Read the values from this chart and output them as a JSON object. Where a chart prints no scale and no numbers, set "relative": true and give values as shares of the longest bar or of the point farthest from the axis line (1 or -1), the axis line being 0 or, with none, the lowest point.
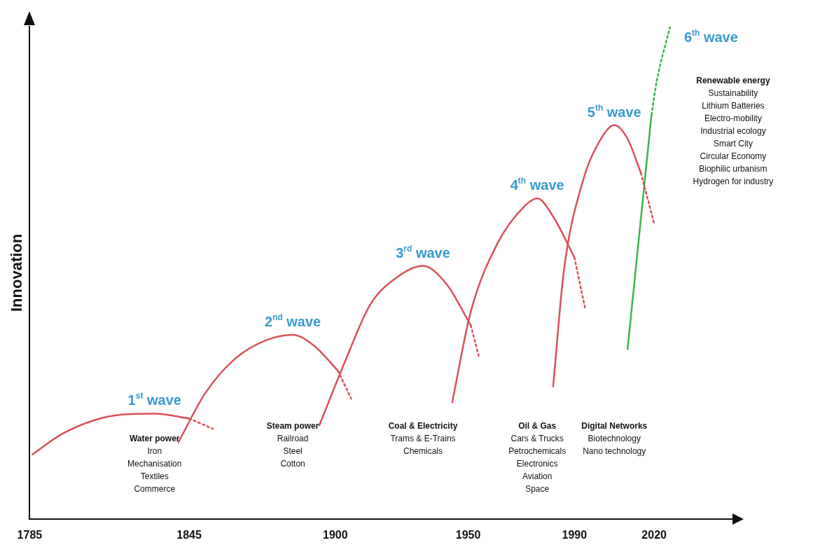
{
  "chart_data": {
    "type": "line",
    "relative": true,
    "ylabel": "Innovation",
    "xlim": [
      1785,
      2050
    ],
    "xticks": [
      1785,
      1845,
      1900,
      1950,
      1990,
      2020
    ],
    "grid": false,
    "legend": false,
    "marker": "none",
    "series": [
      {
        "name": "1$^{st}$ wave",
        "color": "#d9505a",
        "line_style": "solid",
        "x": [
          1786,
          1797,
          1809,
          1820,
          1832,
          1845
        ],
        "values": [
          0.131,
          0.172,
          0.2,
          0.212,
          0.214,
          0.204
        ]
      },
      {
        "color": "#d9505a",
        "line_style": "dotted",
        "x": [
          1845,
          1854
        ],
        "values": [
          0.204,
          0.183
        ]
      },
      {
        "name": "2$^{nd}$ wave",
        "color": "#d9505a",
        "line_style": "solid",
        "x": [
          1841,
          1851,
          1862,
          1874,
          1884,
          1892,
          1901
        ],
        "values": [
          0.156,
          0.255,
          0.324,
          0.363,
          0.374,
          0.352,
          0.301
        ]
      },
      {
        "color": "#d9505a",
        "line_style": "dotted",
        "x": [
          1901,
          1906
        ],
        "values": [
          0.301,
          0.244
        ]
      },
      {
        "name": "3$^{rd}$ wave",
        "color": "#d9505a",
        "line_style": "solid",
        "x": [
          1894,
          1904,
          1913,
          1923,
          1933,
          1942,
          1951
        ],
        "values": [
          0.19,
          0.324,
          0.434,
          0.49,
          0.514,
          0.476,
          0.393
        ]
      },
      {
        "color": "#d9505a",
        "line_style": "dotted",
        "x": [
          1951,
          1954
        ],
        "values": [
          0.393,
          0.331
        ]
      },
      {
        "name": "4$^{th}$ wave",
        "color": "#d9505a",
        "line_style": "solid",
        "x": [
          1944,
          1951,
          1961,
          1971,
          1976,
          1982,
          1990
        ],
        "values": [
          0.237,
          0.421,
          0.559,
          0.634,
          0.651,
          0.614,
          0.531
        ]
      },
      {
        "color": "#d9505a",
        "line_style": "dotted",
        "x": [
          1990,
          1994
        ],
        "values": [
          0.531,
          0.428
        ]
      },
      {
        "name": "5$^{th}$ wave",
        "color": "#d9505a",
        "line_style": "solid",
        "x": [
          1982,
          1986,
          1993,
          2000,
          2005,
          2010,
          2015
        ],
        "values": [
          0.269,
          0.503,
          0.683,
          0.772,
          0.8,
          0.772,
          0.703
        ]
      },
      {
        "color": "#d9505a",
        "line_style": "dotted",
        "x": [
          2015,
          2020
        ],
        "values": [
          0.703,
          0.6
        ]
      },
      {
        "color": "#3cb54a",
        "line_style": "solid",
        "x": [
          2010,
          2019
        ],
        "values": [
          0.345,
          0.821
        ]
      },
      {
        "name": "6$^{th}$ wave",
        "color": "#3cb54a",
        "line_style": "dotted",
        "x": [
          2019,
          2021,
          2026
        ],
        "values": [
          0.821,
          0.89,
          1.0
        ]
      }
    ],
    "annotations": [
      "Water power\nIron\nMechanisation\nTextiles\nCommerce",
      "Steam power\nRailroad\nSteel\nCotton",
      "Coal & Electricity\nTrams & E-Trains\nChemicals",
      "Oil & Gas\nCars & Trucks\nPetrochemicals\nElectronics\nAviation\nSpace",
      "Digital Networks\nBiotechnology\nNano technology",
      "Renewable energy\nSustainability\nLithium Batteries\nElectro-mobility\nIndustrial ecology\nSmart City\nCircular Economy\nBiophilic urbanism\nHydrogen for industry"
    ]
  }
}
